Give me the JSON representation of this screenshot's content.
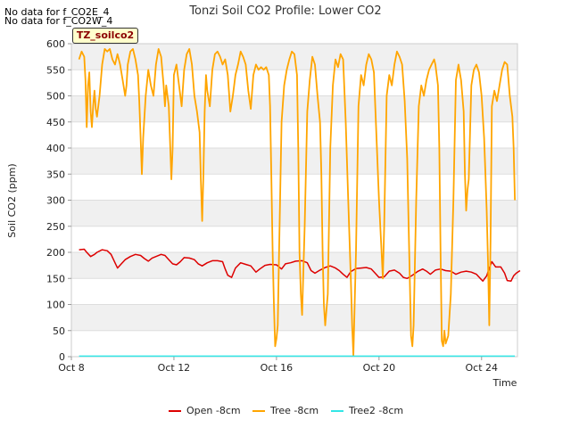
{
  "no_data_messages": [
    "No data for f_CO2E_4",
    "No data for f_CO2W_4"
  ],
  "tag_label": "TZ_soilco2",
  "colors": {
    "open": "#dd0000",
    "tree": "#ffa500",
    "tree2": "#33e6e6",
    "band": "#f0f0f0",
    "axis": "#cccccc"
  },
  "chart_data": {
    "type": "line",
    "title": "Tonzi Soil CO2 Profile: Lower CO2",
    "xlabel": "Time",
    "ylabel": "Soil CO2 (ppm)",
    "xlim": [
      0,
      17.4
    ],
    "ylim": [
      0,
      600
    ],
    "x_ticks": [
      {
        "value": 0,
        "label": "Oct 8"
      },
      {
        "value": 4,
        "label": "Oct 12"
      },
      {
        "value": 8,
        "label": "Oct 16"
      },
      {
        "value": 12,
        "label": "Oct 20"
      },
      {
        "value": 16,
        "label": "Oct 24"
      }
    ],
    "y_ticks": [
      0,
      50,
      100,
      150,
      200,
      250,
      300,
      350,
      400,
      450,
      500,
      550,
      600
    ],
    "legend": [
      {
        "name": "Open -8cm",
        "color": "#dd0000"
      },
      {
        "name": "Tree -8cm",
        "color": "#ffa500"
      },
      {
        "name": "Tree2 -8cm",
        "color": "#33e6e6"
      }
    ],
    "series": [
      {
        "name": "Open -8cm",
        "color": "#dd0000",
        "points": [
          [
            0.3,
            205
          ],
          [
            0.5,
            206
          ],
          [
            0.6,
            200
          ],
          [
            0.75,
            192
          ],
          [
            0.9,
            196
          ],
          [
            1.0,
            200
          ],
          [
            1.2,
            205
          ],
          [
            1.4,
            203
          ],
          [
            1.55,
            196
          ],
          [
            1.7,
            180
          ],
          [
            1.8,
            170
          ],
          [
            1.95,
            178
          ],
          [
            2.1,
            186
          ],
          [
            2.3,
            192
          ],
          [
            2.5,
            196
          ],
          [
            2.7,
            194
          ],
          [
            2.85,
            188
          ],
          [
            3.0,
            183
          ],
          [
            3.15,
            189
          ],
          [
            3.3,
            192
          ],
          [
            3.5,
            196
          ],
          [
            3.65,
            194
          ],
          [
            3.8,
            186
          ],
          [
            3.95,
            178
          ],
          [
            4.1,
            176
          ],
          [
            4.25,
            182
          ],
          [
            4.4,
            190
          ],
          [
            4.6,
            189
          ],
          [
            4.8,
            186
          ],
          [
            4.95,
            178
          ],
          [
            5.1,
            174
          ],
          [
            5.3,
            180
          ],
          [
            5.5,
            184
          ],
          [
            5.7,
            184
          ],
          [
            5.9,
            182
          ],
          [
            6.0,
            168
          ],
          [
            6.1,
            156
          ],
          [
            6.25,
            152
          ],
          [
            6.4,
            170
          ],
          [
            6.6,
            180
          ],
          [
            6.8,
            177
          ],
          [
            7.0,
            174
          ],
          [
            7.2,
            162
          ],
          [
            7.35,
            168
          ],
          [
            7.55,
            175
          ],
          [
            7.75,
            177
          ],
          [
            8.0,
            176
          ],
          [
            8.2,
            168
          ],
          [
            8.35,
            178
          ],
          [
            8.55,
            180
          ],
          [
            8.75,
            183
          ],
          [
            9.0,
            184
          ],
          [
            9.2,
            180
          ],
          [
            9.35,
            165
          ],
          [
            9.5,
            160
          ],
          [
            9.7,
            166
          ],
          [
            9.9,
            171
          ],
          [
            10.1,
            174
          ],
          [
            10.3,
            170
          ],
          [
            10.45,
            165
          ],
          [
            10.6,
            158
          ],
          [
            10.75,
            152
          ],
          [
            10.9,
            163
          ],
          [
            11.1,
            169
          ],
          [
            11.3,
            170
          ],
          [
            11.5,
            171
          ],
          [
            11.7,
            168
          ],
          [
            11.85,
            160
          ],
          [
            12.0,
            152
          ],
          [
            12.2,
            153
          ],
          [
            12.4,
            164
          ],
          [
            12.6,
            166
          ],
          [
            12.8,
            160
          ],
          [
            12.95,
            152
          ],
          [
            13.1,
            150
          ],
          [
            13.3,
            156
          ],
          [
            13.5,
            163
          ],
          [
            13.7,
            168
          ],
          [
            13.85,
            164
          ],
          [
            14.0,
            158
          ],
          [
            14.2,
            166
          ],
          [
            14.4,
            168
          ],
          [
            14.6,
            165
          ],
          [
            14.8,
            164
          ],
          [
            15.0,
            158
          ],
          [
            15.2,
            162
          ],
          [
            15.4,
            164
          ],
          [
            15.6,
            162
          ],
          [
            15.8,
            158
          ],
          [
            15.95,
            150
          ],
          [
            16.05,
            145
          ],
          [
            16.2,
            155
          ],
          [
            16.3,
            170
          ],
          [
            16.4,
            182
          ],
          [
            16.55,
            172
          ],
          [
            16.75,
            172
          ],
          [
            16.9,
            160
          ],
          [
            17.0,
            146
          ],
          [
            17.15,
            145
          ],
          [
            17.25,
            155
          ],
          [
            17.35,
            160
          ],
          [
            17.5,
            165
          ]
        ]
      },
      {
        "name": "Tree -8cm",
        "color": "#ffa500",
        "points": [
          [
            0.3,
            570
          ],
          [
            0.4,
            585
          ],
          [
            0.5,
            575
          ],
          [
            0.55,
            530
          ],
          [
            0.6,
            440
          ],
          [
            0.65,
            520
          ],
          [
            0.7,
            545
          ],
          [
            0.75,
            470
          ],
          [
            0.8,
            440
          ],
          [
            0.85,
            480
          ],
          [
            0.9,
            510
          ],
          [
            0.95,
            475
          ],
          [
            1.0,
            460
          ],
          [
            1.1,
            500
          ],
          [
            1.2,
            560
          ],
          [
            1.3,
            590
          ],
          [
            1.4,
            585
          ],
          [
            1.5,
            590
          ],
          [
            1.6,
            570
          ],
          [
            1.7,
            560
          ],
          [
            1.8,
            580
          ],
          [
            1.9,
            560
          ],
          [
            2.0,
            530
          ],
          [
            2.1,
            500
          ],
          [
            2.15,
            520
          ],
          [
            2.2,
            560
          ],
          [
            2.3,
            585
          ],
          [
            2.4,
            590
          ],
          [
            2.5,
            570
          ],
          [
            2.6,
            540
          ],
          [
            2.65,
            490
          ],
          [
            2.7,
            420
          ],
          [
            2.75,
            350
          ],
          [
            2.8,
            420
          ],
          [
            2.9,
            500
          ],
          [
            3.0,
            550
          ],
          [
            3.1,
            520
          ],
          [
            3.2,
            500
          ],
          [
            3.3,
            560
          ],
          [
            3.4,
            590
          ],
          [
            3.5,
            575
          ],
          [
            3.6,
            520
          ],
          [
            3.65,
            480
          ],
          [
            3.7,
            520
          ],
          [
            3.8,
            480
          ],
          [
            3.9,
            340
          ],
          [
            3.95,
            400
          ],
          [
            4.0,
            540
          ],
          [
            4.1,
            560
          ],
          [
            4.2,
            520
          ],
          [
            4.3,
            480
          ],
          [
            4.4,
            550
          ],
          [
            4.5,
            580
          ],
          [
            4.6,
            590
          ],
          [
            4.7,
            560
          ],
          [
            4.8,
            500
          ],
          [
            4.9,
            470
          ],
          [
            5.0,
            430
          ],
          [
            5.05,
            340
          ],
          [
            5.1,
            260
          ],
          [
            5.15,
            350
          ],
          [
            5.2,
            470
          ],
          [
            5.25,
            540
          ],
          [
            5.3,
            510
          ],
          [
            5.4,
            480
          ],
          [
            5.5,
            550
          ],
          [
            5.6,
            580
          ],
          [
            5.7,
            585
          ],
          [
            5.8,
            575
          ],
          [
            5.9,
            560
          ],
          [
            6.0,
            570
          ],
          [
            6.1,
            540
          ],
          [
            6.2,
            470
          ],
          [
            6.3,
            500
          ],
          [
            6.4,
            540
          ],
          [
            6.5,
            560
          ],
          [
            6.6,
            585
          ],
          [
            6.7,
            575
          ],
          [
            6.8,
            560
          ],
          [
            6.9,
            510
          ],
          [
            7.0,
            475
          ],
          [
            7.1,
            540
          ],
          [
            7.2,
            560
          ],
          [
            7.3,
            550
          ],
          [
            7.4,
            555
          ],
          [
            7.5,
            550
          ],
          [
            7.6,
            555
          ],
          [
            7.7,
            540
          ],
          [
            7.75,
            480
          ],
          [
            7.8,
            350
          ],
          [
            7.85,
            200
          ],
          [
            7.9,
            100
          ],
          [
            7.95,
            20
          ],
          [
            8.0,
            35
          ],
          [
            8.05,
            60
          ],
          [
            8.1,
            200
          ],
          [
            8.2,
            450
          ],
          [
            8.3,
            520
          ],
          [
            8.4,
            550
          ],
          [
            8.5,
            570
          ],
          [
            8.6,
            585
          ],
          [
            8.7,
            580
          ],
          [
            8.8,
            540
          ],
          [
            8.85,
            400
          ],
          [
            8.9,
            200
          ],
          [
            8.95,
            120
          ],
          [
            9.0,
            80
          ],
          [
            9.1,
            250
          ],
          [
            9.2,
            470
          ],
          [
            9.3,
            530
          ],
          [
            9.4,
            575
          ],
          [
            9.5,
            560
          ],
          [
            9.6,
            500
          ],
          [
            9.7,
            450
          ],
          [
            9.75,
            350
          ],
          [
            9.8,
            200
          ],
          [
            9.85,
            100
          ],
          [
            9.9,
            60
          ],
          [
            10.0,
            120
          ],
          [
            10.1,
            400
          ],
          [
            10.2,
            520
          ],
          [
            10.3,
            570
          ],
          [
            10.4,
            555
          ],
          [
            10.5,
            580
          ],
          [
            10.6,
            570
          ],
          [
            10.7,
            450
          ],
          [
            10.8,
            300
          ],
          [
            10.9,
            150
          ],
          [
            10.95,
            60
          ],
          [
            11.0,
            2
          ],
          [
            11.1,
            200
          ],
          [
            11.2,
            480
          ],
          [
            11.3,
            540
          ],
          [
            11.4,
            520
          ],
          [
            11.5,
            560
          ],
          [
            11.6,
            580
          ],
          [
            11.7,
            570
          ],
          [
            11.8,
            545
          ],
          [
            11.9,
            420
          ],
          [
            12.0,
            300
          ],
          [
            12.1,
            200
          ],
          [
            12.15,
            150
          ],
          [
            12.2,
            250
          ],
          [
            12.3,
            500
          ],
          [
            12.4,
            540
          ],
          [
            12.5,
            520
          ],
          [
            12.6,
            560
          ],
          [
            12.7,
            585
          ],
          [
            12.8,
            575
          ],
          [
            12.9,
            560
          ],
          [
            13.0,
            490
          ],
          [
            13.1,
            380
          ],
          [
            13.15,
            260
          ],
          [
            13.2,
            150
          ],
          [
            13.25,
            40
          ],
          [
            13.3,
            20
          ],
          [
            13.35,
            60
          ],
          [
            13.45,
            300
          ],
          [
            13.55,
            480
          ],
          [
            13.65,
            520
          ],
          [
            13.75,
            500
          ],
          [
            13.85,
            530
          ],
          [
            13.95,
            550
          ],
          [
            14.05,
            560
          ],
          [
            14.15,
            570
          ],
          [
            14.2,
            560
          ],
          [
            14.3,
            520
          ],
          [
            14.35,
            400
          ],
          [
            14.4,
            200
          ],
          [
            14.45,
            30
          ],
          [
            14.5,
            20
          ],
          [
            14.55,
            50
          ],
          [
            14.6,
            25
          ],
          [
            14.7,
            40
          ],
          [
            14.8,
            120
          ],
          [
            14.9,
            300
          ],
          [
            15.0,
            530
          ],
          [
            15.1,
            560
          ],
          [
            15.15,
            545
          ],
          [
            15.2,
            530
          ],
          [
            15.3,
            470
          ],
          [
            15.35,
            350
          ],
          [
            15.4,
            280
          ],
          [
            15.45,
            320
          ],
          [
            15.5,
            340
          ],
          [
            15.6,
            520
          ],
          [
            15.7,
            550
          ],
          [
            15.8,
            560
          ],
          [
            15.9,
            545
          ],
          [
            16.0,
            500
          ],
          [
            16.1,
            420
          ],
          [
            16.15,
            350
          ],
          [
            16.2,
            280
          ],
          [
            16.25,
            180
          ],
          [
            16.3,
            60
          ],
          [
            16.35,
            220
          ],
          [
            16.4,
            480
          ],
          [
            16.5,
            510
          ],
          [
            16.6,
            490
          ],
          [
            16.7,
            520
          ],
          [
            16.8,
            550
          ],
          [
            16.9,
            565
          ],
          [
            17.0,
            560
          ],
          [
            17.1,
            500
          ],
          [
            17.2,
            460
          ],
          [
            17.25,
            400
          ],
          [
            17.3,
            300
          ]
        ]
      },
      {
        "name": "Tree2 -8cm",
        "color": "#33e6e6",
        "points": [
          [
            0.3,
            1
          ],
          [
            17.3,
            1
          ]
        ]
      }
    ]
  }
}
